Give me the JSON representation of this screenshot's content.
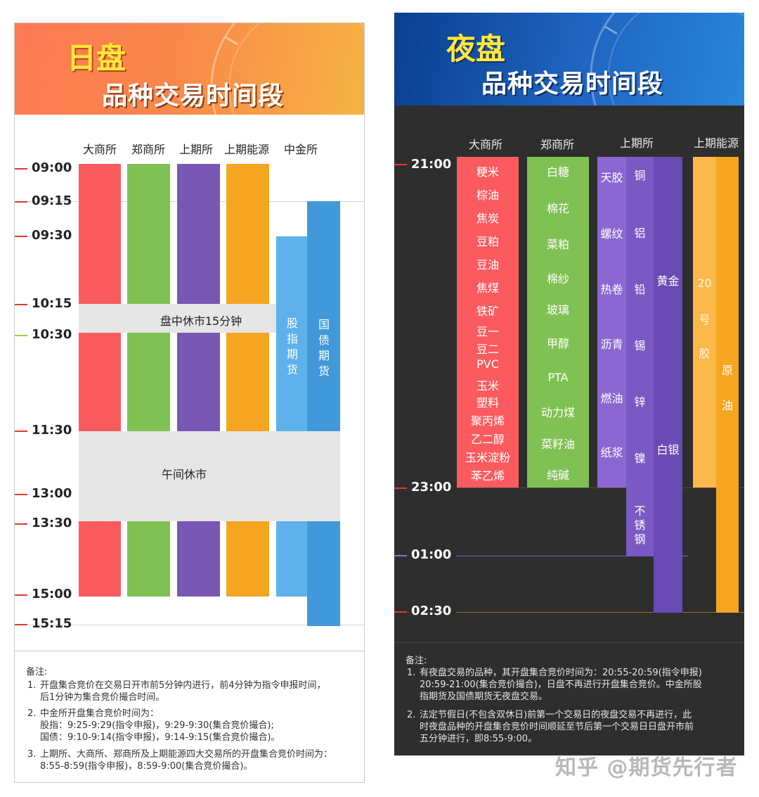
{
  "day": {
    "title": "日盘",
    "subtitle": "品种交易时间段",
    "exchanges": [
      "大商所",
      "郑商所",
      "上期所",
      "上期能源",
      "中金所"
    ],
    "times": [
      "09:00",
      "09:15",
      "09:30",
      "10:15",
      "10:30",
      "11:30",
      "13:00",
      "13:30",
      "15:00",
      "15:15"
    ],
    "break_morning": "盘中休市15分钟",
    "break_noon": "午间休市",
    "stock_index_label": [
      "股",
      "指",
      "期",
      "货"
    ],
    "bond_label": [
      "国",
      "债",
      "期",
      "货"
    ],
    "colors": {
      "dce": "#fb5b5f",
      "czce": "#80c153",
      "shfe": "#7857b4",
      "ine": "#f6a521",
      "cffex_stock": "#5eb1ea",
      "cffex_bond": "#4299d9",
      "break": "#e6e6e6",
      "tick": "#e13a2e",
      "tick_1030": "#9ed04a"
    },
    "notes_title": "备注:",
    "notes": [
      {
        "num": "1.",
        "lines": [
          "开盘集合竞价在交易日开市前5分钟内进行，前4分钟为指令申报时间，",
          "后1分钟为集合竞价撮合时间。"
        ]
      },
      {
        "num": "2.",
        "lines": [
          "中金所开盘集合竞价时间为：",
          "股指：9:25-9:29(指令申报)，9:29-9:30(集合竞价撮合);",
          "国债：9:10-9:14(指令申报)，9:14-9:15(集合竞价撮合)。"
        ]
      },
      {
        "num": "3.",
        "lines": [
          "上期所、大商所、郑商所及上期能源四大交易所的开盘集合竞价时间为：",
          "8:55-8:59(指令申报)，8:59-9:00(集合竞价撮合)。"
        ]
      }
    ]
  },
  "night": {
    "title": "夜盘",
    "subtitle": "品种交易时间段",
    "exchanges": [
      "大商所",
      "郑商所",
      "上期所",
      "上期能源"
    ],
    "times": [
      "21:00",
      "23:00",
      "01:00",
      "02:30"
    ],
    "dce_items": [
      "粳米",
      "棕油",
      "焦炭",
      "豆粕",
      "豆油",
      "焦煤",
      "铁矿",
      "豆一",
      "豆二",
      "PVC",
      "玉米",
      "塑料",
      "聚丙烯",
      "乙二醇",
      "玉米淀粉",
      "苯乙烯"
    ],
    "czce_items": [
      "白糖",
      "棉花",
      "菜粕",
      "棉纱",
      "玻璃",
      "甲醇",
      "PTA",
      "动力煤",
      "菜籽油",
      "纯碱"
    ],
    "shfe_col1": [
      "天胶",
      "螺纹",
      "热卷",
      "沥青",
      "燃油",
      "纸浆"
    ],
    "shfe_col2": [
      "铜",
      "铝",
      "铅",
      "锡",
      "锌",
      "镍"
    ],
    "shfe_col2_extra": [
      "不",
      "锈",
      "钢"
    ],
    "shfe_col3": [
      "黄金",
      "白银"
    ],
    "ine_col1": [
      "20",
      "号",
      "胶"
    ],
    "ine_col2": [
      "原",
      "油"
    ],
    "colors": {
      "dce": "#fb5b5f",
      "czce": "#80c153",
      "shfe_a": "#8b67d2",
      "shfe_b": "#7b59c4",
      "shfe_c": "#6a4ab3",
      "ine_a": "#fdb84b",
      "ine_b": "#f6a521",
      "bg": "#2e2e2e"
    },
    "notes_title": "备注:",
    "notes": [
      {
        "num": "1.",
        "lines": [
          "有夜盘交易的品种，其开盘集合竞价时间为：20:55-20:59(指令申报)",
          "20:59-21:00(集合竞价撮合)，日盘不再进行开盘集合竞价。中金所股",
          "指期货及国债期货无夜盘交易。"
        ]
      },
      {
        "num": "2.",
        "lines": [
          "法定节假日(不包含双休日)前第一个交易日的夜盘交易不再进行，此",
          "时夜盘品种的开盘集合竞价时间顺延至节后第一个交易日日盘开市前",
          "五分钟进行，即8:55-9:00。"
        ]
      }
    ]
  },
  "watermark": "知乎 @期货先行者"
}
